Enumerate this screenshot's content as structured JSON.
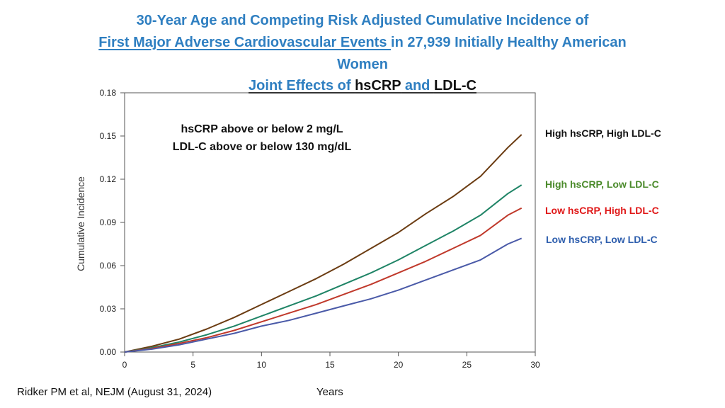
{
  "title": {
    "line1": "30-Year Age and Competing Risk Adjusted Cumulative Incidence of",
    "line2_link": "First Major Adverse Cardiovascular Events ",
    "line2_rest": "in 27,939 Initially Healthy American",
    "line3": "Women",
    "line4_prefix": "Joint Effects of ",
    "line4_hscrp": "hsCRP",
    "line4_and": " and ",
    "line4_ldl": "LDL-C"
  },
  "note": {
    "line1": "hsCRP above or below 2 mg/L",
    "line2": "LDL-C above or below 130 mg/dL"
  },
  "citation": "Ridker PM et al, NEJM (August 31, 2024)",
  "colors": {
    "title": "#2f7fc1",
    "high_high": "#6b3c12",
    "high_low": "#1f8466",
    "low_high": "#c0392b",
    "low_low": "#4a5aa8"
  },
  "chart_data": {
    "type": "line",
    "xlabel": "Years",
    "ylabel": "Cumulative Incidence",
    "xlim": [
      0,
      30
    ],
    "ylim": [
      0,
      0.18
    ],
    "xticks": [
      "0",
      "5",
      "10",
      "15",
      "20",
      "25",
      "30"
    ],
    "yticks": [
      "0.00",
      "0.03",
      "0.06",
      "0.09",
      "0.12",
      "0.15",
      "0.18"
    ],
    "x": [
      0,
      2,
      4,
      6,
      8,
      10,
      12,
      14,
      16,
      18,
      20,
      22,
      24,
      26,
      28,
      29
    ],
    "series": [
      {
        "name": "High hsCRP, High LDL-C",
        "color": "#6b3c12",
        "label_color": "#111111",
        "values": [
          0,
          0.004,
          0.009,
          0.016,
          0.024,
          0.033,
          0.042,
          0.051,
          0.061,
          0.072,
          0.083,
          0.096,
          0.108,
          0.122,
          0.142,
          0.151
        ]
      },
      {
        "name": "High hsCRP, Low LDL-C",
        "color": "#1f8466",
        "label_color": "#4a8a2a",
        "values": [
          0,
          0.003,
          0.007,
          0.012,
          0.018,
          0.025,
          0.032,
          0.039,
          0.047,
          0.055,
          0.064,
          0.074,
          0.084,
          0.095,
          0.11,
          0.116
        ]
      },
      {
        "name": "Low hsCRP, High LDL-C",
        "color": "#c0392b",
        "label_color": "#e01818",
        "values": [
          0,
          0.0025,
          0.006,
          0.01,
          0.015,
          0.021,
          0.027,
          0.033,
          0.04,
          0.047,
          0.055,
          0.063,
          0.072,
          0.081,
          0.095,
          0.1
        ]
      },
      {
        "name": "Low hsCRP, Low LDL-C",
        "color": "#4a5aa8",
        "label_color": "#2f5fae",
        "values": [
          0,
          0.002,
          0.005,
          0.009,
          0.013,
          0.018,
          0.022,
          0.027,
          0.032,
          0.037,
          0.043,
          0.05,
          0.057,
          0.064,
          0.075,
          0.079
        ]
      }
    ]
  }
}
